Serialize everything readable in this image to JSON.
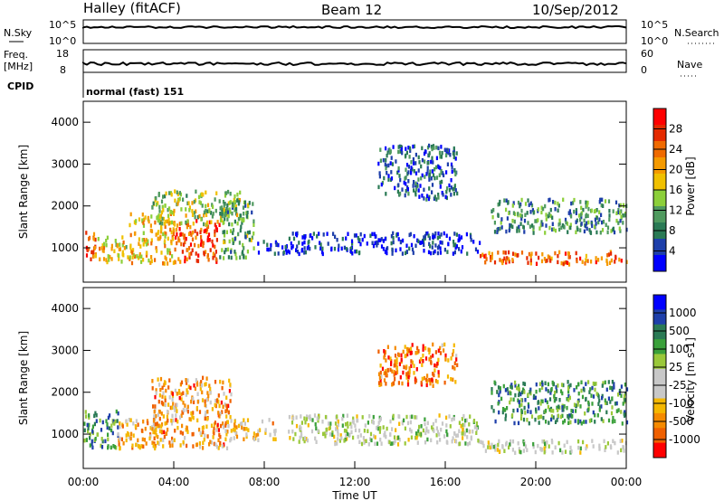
{
  "header": {
    "title": "Halley (fitACF)",
    "beam": "Beam 12",
    "date": "10/Sep/2012"
  },
  "top_panels": {
    "nsky_label": "N.Sky",
    "nsearch_label": "N.Search",
    "nsky_ticks": [
      "10^5",
      "10^0"
    ],
    "nsearch_ticks": [
      "10^5",
      "10^0"
    ],
    "freq_label": "Freq.",
    "freq_unit": "[MHz]",
    "freq_ticks": [
      "18",
      "8"
    ],
    "nave_label": "Nave",
    "nave_ticks": [
      "60",
      "0"
    ],
    "cpid_label": "CPID",
    "cpid_text": "normal (fast) 151"
  },
  "chart_data": [
    {
      "type": "heatmap",
      "name": "power",
      "ylabel": "Slant Range [km]",
      "xlabel": "",
      "yticks": [
        "4000",
        "3000",
        "2000",
        "1000"
      ],
      "ylim": [
        180,
        4500
      ],
      "xlim": [
        0,
        24
      ],
      "colorbar_label": "Power [dB]",
      "colorbar_ticks": [
        "28",
        "24",
        "20",
        "16",
        "12",
        "8",
        "4"
      ],
      "colors": [
        "#0000ff",
        "#1e3faa",
        "#2a7a55",
        "#4f9a5f",
        "#8ccf3a",
        "#f0c000",
        "#f59a00",
        "#f06a00",
        "#e52a00",
        "#ff0000"
      ],
      "blobs": [
        {
          "t0": 0.0,
          "t1": 0.5,
          "r0": 700,
          "r1": 1500,
          "v": 0.8
        },
        {
          "t0": 0.5,
          "t1": 2.0,
          "r0": 700,
          "r1": 1300,
          "v": 0.55
        },
        {
          "t0": 2.0,
          "t1": 4.0,
          "r0": 650,
          "r1": 1900,
          "v": 0.6
        },
        {
          "t0": 4.0,
          "t1": 6.0,
          "r0": 700,
          "r1": 1700,
          "v": 0.8
        },
        {
          "t0": 3.0,
          "t1": 7.0,
          "r0": 1600,
          "r1": 2400,
          "v": 0.45
        },
        {
          "t0": 6.0,
          "t1": 7.5,
          "r0": 800,
          "r1": 2200,
          "v": 0.35
        },
        {
          "t0": 7.5,
          "t1": 9.0,
          "r0": 900,
          "r1": 1200,
          "v": 0.15
        },
        {
          "t0": 9.0,
          "t1": 17.5,
          "r0": 900,
          "r1": 1400,
          "v": 0.1
        },
        {
          "t0": 13.0,
          "t1": 16.5,
          "r0": 2200,
          "r1": 3500,
          "v": 0.2
        },
        {
          "t0": 17.5,
          "t1": 24.0,
          "r0": 650,
          "r1": 950,
          "v": 0.75
        },
        {
          "t0": 18.0,
          "t1": 24.0,
          "r0": 1400,
          "r1": 2200,
          "v": 0.3
        }
      ]
    },
    {
      "type": "heatmap",
      "name": "velocity",
      "ylabel": "Slant Range [km]",
      "xlabel": "Time UT",
      "yticks": [
        "4000",
        "3000",
        "2000",
        "1000"
      ],
      "xticks": [
        "00:00",
        "04:00",
        "08:00",
        "12:00",
        "16:00",
        "20:00",
        "00:00"
      ],
      "ylim": [
        180,
        4500
      ],
      "xlim": [
        0,
        24
      ],
      "colorbar_label": "Velocity [m s-1]",
      "colorbar_ticks": [
        "1000",
        "500",
        "100",
        "25",
        "-25",
        "-100",
        "-500",
        "-1000"
      ],
      "colors": [
        "#ff0000",
        "#f06000",
        "#f58a00",
        "#f5b800",
        "#c8c8c8",
        "#c8c8c8",
        "#9ac83a",
        "#3aa03a",
        "#2a7a55",
        "#1e3faa",
        "#0000ff"
      ],
      "blobs": [
        {
          "t0": 0.0,
          "t1": 1.5,
          "r0": 700,
          "r1": 1600,
          "v": 0.72
        },
        {
          "t0": 1.5,
          "t1": 3.5,
          "r0": 700,
          "r1": 1400,
          "v": 0.3
        },
        {
          "t0": 3.0,
          "t1": 6.5,
          "r0": 700,
          "r1": 2400,
          "v": 0.25
        },
        {
          "t0": 6.5,
          "t1": 8.5,
          "r0": 900,
          "r1": 1400,
          "v": 0.35
        },
        {
          "t0": 9.0,
          "t1": 17.5,
          "r0": 800,
          "r1": 1500,
          "v": 0.5
        },
        {
          "t0": 13.0,
          "t1": 16.5,
          "r0": 2200,
          "r1": 3200,
          "v": 0.2
        },
        {
          "t0": 17.5,
          "t1": 24.0,
          "r0": 600,
          "r1": 900,
          "v": 0.5
        },
        {
          "t0": 18.0,
          "t1": 24.0,
          "r0": 1300,
          "r1": 2300,
          "v": 0.72
        }
      ]
    }
  ]
}
